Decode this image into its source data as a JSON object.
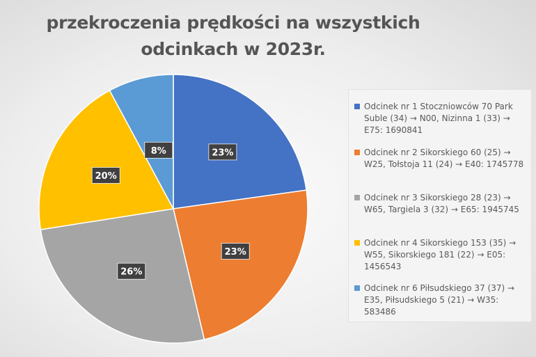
{
  "chart_data": {
    "type": "pie",
    "title": "przekroczenia prędkości na wszystkich odcinkach w 2023r.",
    "legend_position": "right",
    "slices": [
      {
        "name": "Odcinek nr 1 Stoczniowców 70 Park Suble (34) → N00, Nizinna 1 (33) → E75: 1690841",
        "value": 1690841,
        "label": "23%",
        "color": "#4472C4"
      },
      {
        "name": "Odcinek nr 2 Sikorskiego 60 (25) → W25, Tołstoja 11 (24) → E40: 1745778",
        "value": 1745778,
        "label": "23%",
        "color": "#ED7D31"
      },
      {
        "name": "Odcinek nr 3 Sikorskiego 28 (23) → W65, Targiela 3 (32) →  E65: 1945745",
        "value": 1945745,
        "label": "26%",
        "color": "#A5A5A5"
      },
      {
        "name": "Odcinek nr 4 Sikorskiego 153 (35) → W55, Sikorskiego 181 (22) →  E05: 1456543",
        "value": 1456543,
        "label": "20%",
        "color": "#FFC000"
      },
      {
        "name": "Odcinek nr 6 Piłsudskiego 37 (37) → E35, Piłsudskiego 5 (21) → W35: 583486",
        "value": 583486,
        "label": "8%",
        "color": "#5B9BD5"
      }
    ]
  }
}
